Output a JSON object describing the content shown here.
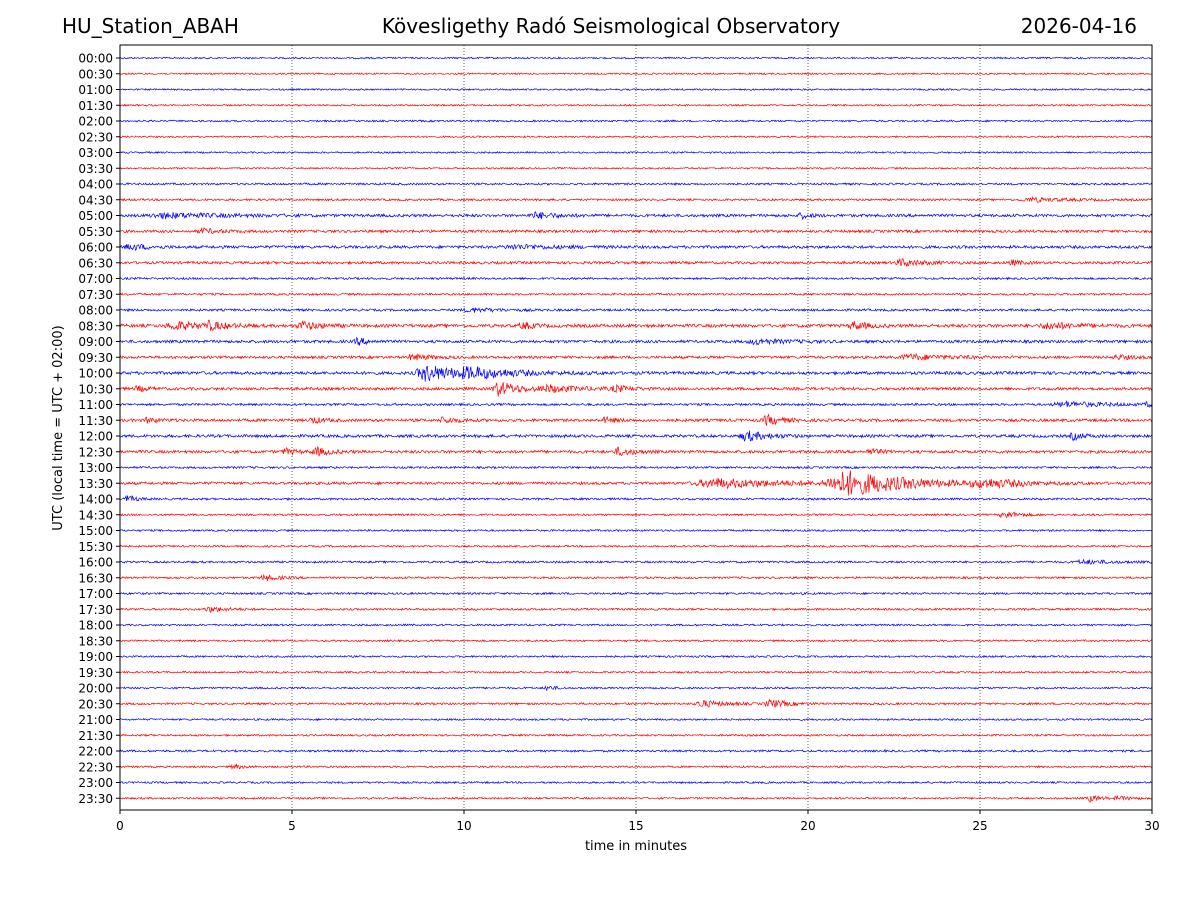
{
  "header": {
    "station": "HU_Station_ABAH",
    "observatory": "Kövesligethy Radó Seismological Observatory",
    "date": "2026-04-16"
  },
  "chart_data": {
    "type": "line",
    "title": "Kövesligethy Radó Seismological Observatory",
    "xlabel": "time in minutes",
    "ylabel": "UTC (local time = UTC + 02:00)",
    "xlim": [
      0,
      30
    ],
    "xticks": [
      0,
      5,
      10,
      15,
      20,
      25,
      30
    ],
    "vertical_gridlines_at": [
      5,
      10,
      15,
      20,
      25
    ],
    "grid": "dotted vertical",
    "series_colors": [
      "#0000ff",
      "#ff0000"
    ],
    "traces": [
      {
        "label": "00:00",
        "color": "#0000ff",
        "base_noise": 0.8,
        "events": []
      },
      {
        "label": "00:30",
        "color": "#ff0000",
        "base_noise": 0.8,
        "events": []
      },
      {
        "label": "01:00",
        "color": "#0000ff",
        "base_noise": 0.8,
        "events": []
      },
      {
        "label": "01:30",
        "color": "#ff0000",
        "base_noise": 0.8,
        "events": []
      },
      {
        "label": "02:00",
        "color": "#0000ff",
        "base_noise": 0.9,
        "events": []
      },
      {
        "label": "02:30",
        "color": "#ff0000",
        "base_noise": 0.8,
        "events": []
      },
      {
        "label": "03:00",
        "color": "#0000ff",
        "base_noise": 0.8,
        "events": []
      },
      {
        "label": "03:30",
        "color": "#ff0000",
        "base_noise": 0.8,
        "events": []
      },
      {
        "label": "04:00",
        "color": "#0000ff",
        "base_noise": 1.0,
        "events": []
      },
      {
        "label": "04:30",
        "color": "#ff0000",
        "base_noise": 1.0,
        "events": [
          {
            "t": 26.5,
            "amp": 2.0,
            "dur": 1.0
          }
        ]
      },
      {
        "label": "05:00",
        "color": "#0000ff",
        "base_noise": 1.4,
        "events": [
          {
            "t": 1.3,
            "amp": 2.5,
            "dur": 1.5
          },
          {
            "t": 12.1,
            "amp": 3.0,
            "dur": 0.6
          },
          {
            "t": 19.8,
            "amp": 2.5,
            "dur": 0.3
          }
        ]
      },
      {
        "label": "05:30",
        "color": "#ff0000",
        "base_noise": 1.3,
        "events": [
          {
            "t": 2.4,
            "amp": 2.5,
            "dur": 0.5
          }
        ]
      },
      {
        "label": "06:00",
        "color": "#0000ff",
        "base_noise": 1.4,
        "events": [
          {
            "t": 0.3,
            "amp": 3.0,
            "dur": 0.5
          },
          {
            "t": 11.5,
            "amp": 2.0,
            "dur": 1.2
          }
        ]
      },
      {
        "label": "06:30",
        "color": "#ff0000",
        "base_noise": 1.3,
        "events": [
          {
            "t": 22.7,
            "amp": 3.5,
            "dur": 0.6
          },
          {
            "t": 25.9,
            "amp": 2.5,
            "dur": 0.3
          }
        ]
      },
      {
        "label": "07:00",
        "color": "#0000ff",
        "base_noise": 1.0,
        "events": []
      },
      {
        "label": "07:30",
        "color": "#ff0000",
        "base_noise": 1.0,
        "events": []
      },
      {
        "label": "08:00",
        "color": "#0000ff",
        "base_noise": 1.1,
        "events": [
          {
            "t": 10.2,
            "amp": 2.0,
            "dur": 0.8
          }
        ]
      },
      {
        "label": "08:30",
        "color": "#ff0000",
        "base_noise": 1.6,
        "events": [
          {
            "t": 1.6,
            "amp": 4.0,
            "dur": 0.8
          },
          {
            "t": 2.6,
            "amp": 3.5,
            "dur": 0.4
          },
          {
            "t": 5.3,
            "amp": 4.0,
            "dur": 0.5
          },
          {
            "t": 11.7,
            "amp": 3.5,
            "dur": 0.3
          },
          {
            "t": 21.3,
            "amp": 4.0,
            "dur": 0.4
          },
          {
            "t": 27.0,
            "amp": 3.0,
            "dur": 0.8
          }
        ]
      },
      {
        "label": "09:00",
        "color": "#0000ff",
        "base_noise": 1.4,
        "events": [
          {
            "t": 6.9,
            "amp": 3.5,
            "dur": 0.3
          },
          {
            "t": 18.5,
            "amp": 2.5,
            "dur": 0.8
          }
        ]
      },
      {
        "label": "09:30",
        "color": "#ff0000",
        "base_noise": 1.3,
        "events": [
          {
            "t": 8.5,
            "amp": 3.0,
            "dur": 0.5
          },
          {
            "t": 23.0,
            "amp": 2.5,
            "dur": 1.2
          },
          {
            "t": 29.0,
            "amp": 2.0,
            "dur": 0.5
          }
        ]
      },
      {
        "label": "10:00",
        "color": "#0000ff",
        "base_noise": 1.5,
        "events": [
          {
            "t": 8.9,
            "amp": 8.0,
            "dur": 1.0
          },
          {
            "t": 10.2,
            "amp": 4.0,
            "dur": 1.4
          }
        ]
      },
      {
        "label": "10:30",
        "color": "#ff0000",
        "base_noise": 1.4,
        "events": [
          {
            "t": 0.5,
            "amp": 2.5,
            "dur": 0.3
          },
          {
            "t": 11.0,
            "amp": 7.0,
            "dur": 0.6
          },
          {
            "t": 12.5,
            "amp": 3.0,
            "dur": 1.0
          },
          {
            "t": 14.4,
            "amp": 3.0,
            "dur": 0.3
          }
        ]
      },
      {
        "label": "11:00",
        "color": "#0000ff",
        "base_noise": 1.1,
        "events": [
          {
            "t": 27.5,
            "amp": 2.5,
            "dur": 1.3
          },
          {
            "t": 29.9,
            "amp": 3.0,
            "dur": 0.3
          }
        ]
      },
      {
        "label": "11:30",
        "color": "#ff0000",
        "base_noise": 1.4,
        "events": [
          {
            "t": 0.8,
            "amp": 2.5,
            "dur": 0.3
          },
          {
            "t": 5.6,
            "amp": 3.0,
            "dur": 0.3
          },
          {
            "t": 9.4,
            "amp": 3.0,
            "dur": 0.4
          },
          {
            "t": 14.1,
            "amp": 2.5,
            "dur": 0.3
          },
          {
            "t": 18.8,
            "amp": 5.0,
            "dur": 0.4
          }
        ]
      },
      {
        "label": "12:00",
        "color": "#0000ff",
        "base_noise": 1.4,
        "events": [
          {
            "t": 18.2,
            "amp": 5.0,
            "dur": 0.6
          },
          {
            "t": 27.7,
            "amp": 3.5,
            "dur": 0.3
          }
        ]
      },
      {
        "label": "12:30",
        "color": "#ff0000",
        "base_noise": 1.4,
        "events": [
          {
            "t": 4.8,
            "amp": 3.0,
            "dur": 0.3
          },
          {
            "t": 5.7,
            "amp": 4.0,
            "dur": 0.4
          },
          {
            "t": 14.5,
            "amp": 4.0,
            "dur": 0.4
          },
          {
            "t": 21.8,
            "amp": 3.0,
            "dur": 0.3
          }
        ]
      },
      {
        "label": "13:00",
        "color": "#0000ff",
        "base_noise": 1.0,
        "events": []
      },
      {
        "label": "13:30",
        "color": "#ff0000",
        "base_noise": 1.3,
        "events": [
          {
            "t": 17.3,
            "amp": 4.5,
            "dur": 2.0
          },
          {
            "t": 21.1,
            "amp": 12.0,
            "dur": 1.8
          },
          {
            "t": 25.1,
            "amp": 3.5,
            "dur": 1.2
          }
        ]
      },
      {
        "label": "14:00",
        "color": "#0000ff",
        "base_noise": 1.0,
        "events": [
          {
            "t": 0.2,
            "amp": 3.0,
            "dur": 0.3
          }
        ]
      },
      {
        "label": "14:30",
        "color": "#ff0000",
        "base_noise": 0.9,
        "events": [
          {
            "t": 25.7,
            "amp": 4.0,
            "dur": 0.4
          }
        ]
      },
      {
        "label": "15:00",
        "color": "#0000ff",
        "base_noise": 0.9,
        "events": []
      },
      {
        "label": "15:30",
        "color": "#ff0000",
        "base_noise": 0.9,
        "events": []
      },
      {
        "label": "16:00",
        "color": "#0000ff",
        "base_noise": 1.0,
        "events": [
          {
            "t": 28.0,
            "amp": 2.0,
            "dur": 0.8
          }
        ]
      },
      {
        "label": "16:30",
        "color": "#ff0000",
        "base_noise": 1.0,
        "events": [
          {
            "t": 4.2,
            "amp": 3.0,
            "dur": 0.4
          }
        ]
      },
      {
        "label": "17:00",
        "color": "#0000ff",
        "base_noise": 1.0,
        "events": []
      },
      {
        "label": "17:30",
        "color": "#ff0000",
        "base_noise": 1.0,
        "events": [
          {
            "t": 2.6,
            "amp": 2.5,
            "dur": 0.5
          }
        ]
      },
      {
        "label": "18:00",
        "color": "#0000ff",
        "base_noise": 0.9,
        "events": []
      },
      {
        "label": "18:30",
        "color": "#ff0000",
        "base_noise": 0.9,
        "events": []
      },
      {
        "label": "19:00",
        "color": "#0000ff",
        "base_noise": 0.9,
        "events": []
      },
      {
        "label": "19:30",
        "color": "#ff0000",
        "base_noise": 0.9,
        "events": []
      },
      {
        "label": "20:00",
        "color": "#0000ff",
        "base_noise": 0.9,
        "events": [
          {
            "t": 12.4,
            "amp": 3.0,
            "dur": 0.2
          }
        ]
      },
      {
        "label": "20:30",
        "color": "#ff0000",
        "base_noise": 1.0,
        "events": [
          {
            "t": 16.9,
            "amp": 3.5,
            "dur": 0.6
          },
          {
            "t": 18.9,
            "amp": 4.0,
            "dur": 0.5
          }
        ]
      },
      {
        "label": "21:00",
        "color": "#0000ff",
        "base_noise": 0.9,
        "events": []
      },
      {
        "label": "21:30",
        "color": "#ff0000",
        "base_noise": 0.9,
        "events": []
      },
      {
        "label": "22:00",
        "color": "#0000ff",
        "base_noise": 1.0,
        "events": []
      },
      {
        "label": "22:30",
        "color": "#ff0000",
        "base_noise": 0.9,
        "events": [
          {
            "t": 3.3,
            "amp": 2.0,
            "dur": 0.3
          }
        ]
      },
      {
        "label": "23:00",
        "color": "#0000ff",
        "base_noise": 0.9,
        "events": []
      },
      {
        "label": "23:30",
        "color": "#ff0000",
        "base_noise": 0.9,
        "events": [
          {
            "t": 28.2,
            "amp": 3.0,
            "dur": 0.3
          },
          {
            "t": 29.0,
            "amp": 2.0,
            "dur": 0.4
          }
        ]
      }
    ]
  }
}
